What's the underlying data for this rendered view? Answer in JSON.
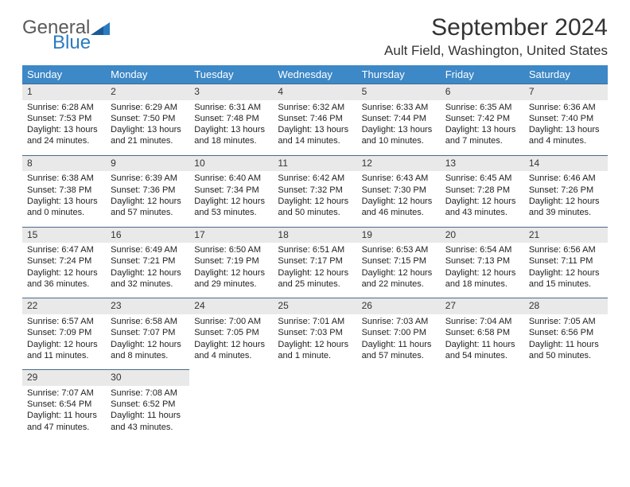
{
  "logo": {
    "general": "General",
    "blue": "Blue"
  },
  "title": "September 2024",
  "location": "Ault Field, Washington, United States",
  "colors": {
    "header_bg": "#3d88c7",
    "daynum_bg": "#e9e9e9",
    "border_top": "#4a6a8a",
    "logo_gray": "#5a5a5a",
    "logo_blue": "#2b7bbf"
  },
  "day_headers": [
    "Sunday",
    "Monday",
    "Tuesday",
    "Wednesday",
    "Thursday",
    "Friday",
    "Saturday"
  ],
  "weeks": [
    [
      {
        "n": "1",
        "sr": "6:28 AM",
        "ss": "7:53 PM",
        "dl": "13 hours and 24 minutes."
      },
      {
        "n": "2",
        "sr": "6:29 AM",
        "ss": "7:50 PM",
        "dl": "13 hours and 21 minutes."
      },
      {
        "n": "3",
        "sr": "6:31 AM",
        "ss": "7:48 PM",
        "dl": "13 hours and 18 minutes."
      },
      {
        "n": "4",
        "sr": "6:32 AM",
        "ss": "7:46 PM",
        "dl": "13 hours and 14 minutes."
      },
      {
        "n": "5",
        "sr": "6:33 AM",
        "ss": "7:44 PM",
        "dl": "13 hours and 10 minutes."
      },
      {
        "n": "6",
        "sr": "6:35 AM",
        "ss": "7:42 PM",
        "dl": "13 hours and 7 minutes."
      },
      {
        "n": "7",
        "sr": "6:36 AM",
        "ss": "7:40 PM",
        "dl": "13 hours and 4 minutes."
      }
    ],
    [
      {
        "n": "8",
        "sr": "6:38 AM",
        "ss": "7:38 PM",
        "dl": "13 hours and 0 minutes."
      },
      {
        "n": "9",
        "sr": "6:39 AM",
        "ss": "7:36 PM",
        "dl": "12 hours and 57 minutes."
      },
      {
        "n": "10",
        "sr": "6:40 AM",
        "ss": "7:34 PM",
        "dl": "12 hours and 53 minutes."
      },
      {
        "n": "11",
        "sr": "6:42 AM",
        "ss": "7:32 PM",
        "dl": "12 hours and 50 minutes."
      },
      {
        "n": "12",
        "sr": "6:43 AM",
        "ss": "7:30 PM",
        "dl": "12 hours and 46 minutes."
      },
      {
        "n": "13",
        "sr": "6:45 AM",
        "ss": "7:28 PM",
        "dl": "12 hours and 43 minutes."
      },
      {
        "n": "14",
        "sr": "6:46 AM",
        "ss": "7:26 PM",
        "dl": "12 hours and 39 minutes."
      }
    ],
    [
      {
        "n": "15",
        "sr": "6:47 AM",
        "ss": "7:24 PM",
        "dl": "12 hours and 36 minutes."
      },
      {
        "n": "16",
        "sr": "6:49 AM",
        "ss": "7:21 PM",
        "dl": "12 hours and 32 minutes."
      },
      {
        "n": "17",
        "sr": "6:50 AM",
        "ss": "7:19 PM",
        "dl": "12 hours and 29 minutes."
      },
      {
        "n": "18",
        "sr": "6:51 AM",
        "ss": "7:17 PM",
        "dl": "12 hours and 25 minutes."
      },
      {
        "n": "19",
        "sr": "6:53 AM",
        "ss": "7:15 PM",
        "dl": "12 hours and 22 minutes."
      },
      {
        "n": "20",
        "sr": "6:54 AM",
        "ss": "7:13 PM",
        "dl": "12 hours and 18 minutes."
      },
      {
        "n": "21",
        "sr": "6:56 AM",
        "ss": "7:11 PM",
        "dl": "12 hours and 15 minutes."
      }
    ],
    [
      {
        "n": "22",
        "sr": "6:57 AM",
        "ss": "7:09 PM",
        "dl": "12 hours and 11 minutes."
      },
      {
        "n": "23",
        "sr": "6:58 AM",
        "ss": "7:07 PM",
        "dl": "12 hours and 8 minutes."
      },
      {
        "n": "24",
        "sr": "7:00 AM",
        "ss": "7:05 PM",
        "dl": "12 hours and 4 minutes."
      },
      {
        "n": "25",
        "sr": "7:01 AM",
        "ss": "7:03 PM",
        "dl": "12 hours and 1 minute."
      },
      {
        "n": "26",
        "sr": "7:03 AM",
        "ss": "7:00 PM",
        "dl": "11 hours and 57 minutes."
      },
      {
        "n": "27",
        "sr": "7:04 AM",
        "ss": "6:58 PM",
        "dl": "11 hours and 54 minutes."
      },
      {
        "n": "28",
        "sr": "7:05 AM",
        "ss": "6:56 PM",
        "dl": "11 hours and 50 minutes."
      }
    ],
    [
      {
        "n": "29",
        "sr": "7:07 AM",
        "ss": "6:54 PM",
        "dl": "11 hours and 47 minutes."
      },
      {
        "n": "30",
        "sr": "7:08 AM",
        "ss": "6:52 PM",
        "dl": "11 hours and 43 minutes."
      },
      null,
      null,
      null,
      null,
      null
    ]
  ],
  "labels": {
    "sunrise": "Sunrise:",
    "sunset": "Sunset:",
    "daylight": "Daylight:"
  }
}
